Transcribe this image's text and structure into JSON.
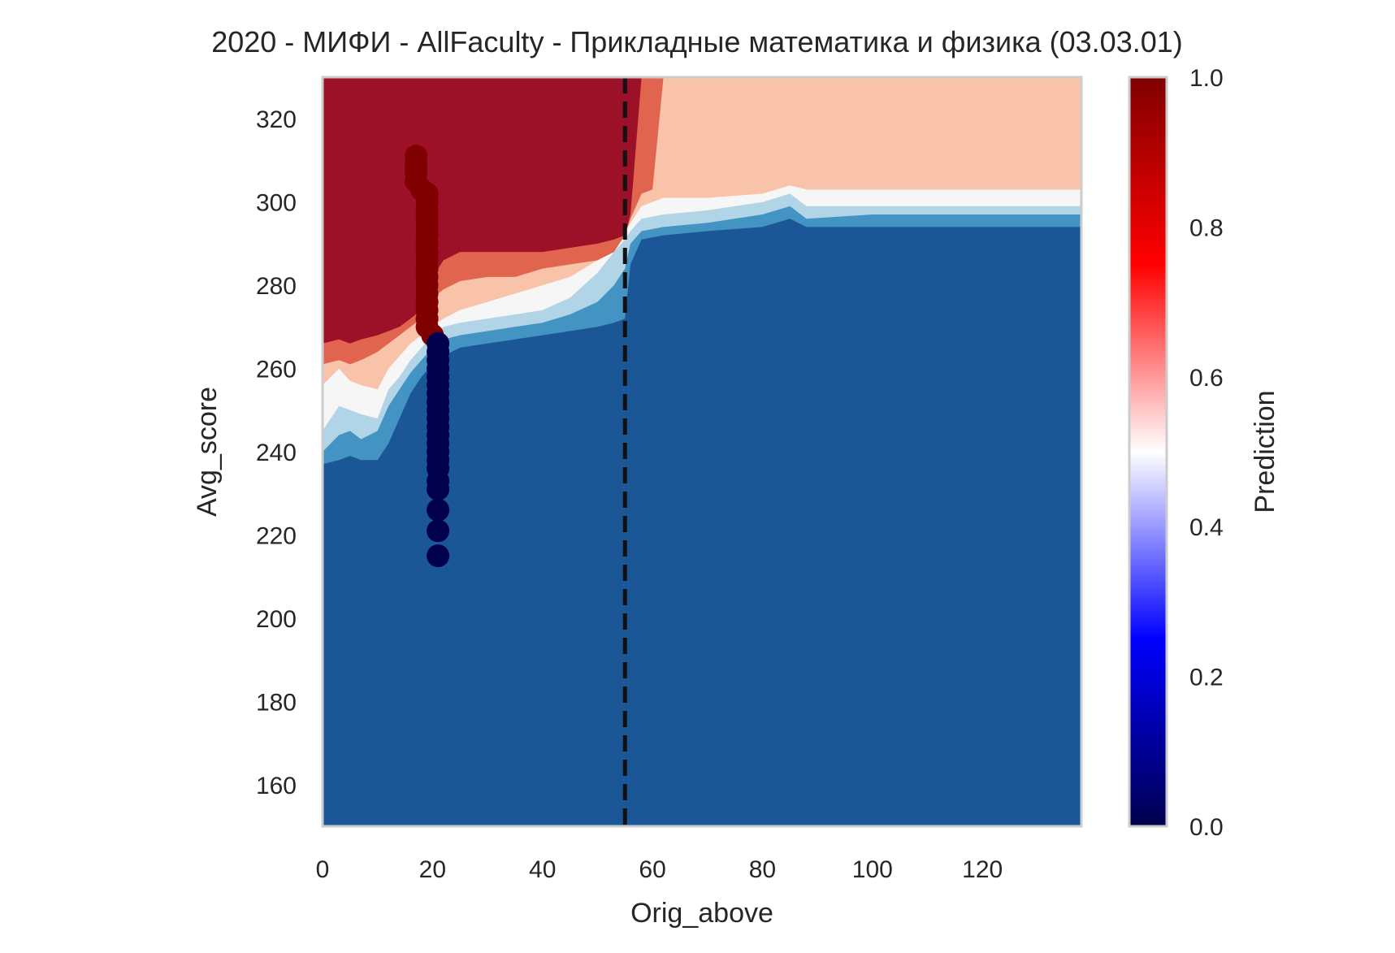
{
  "chart_data": {
    "type": "heatmap",
    "title": "2020 - МИФИ - AllFaculty - Прикладные математика и физика (03.03.01)",
    "xlabel": "Orig_above",
    "ylabel": "Avg_score",
    "xlim": [
      0,
      138
    ],
    "ylim": [
      150,
      330
    ],
    "xticks": [
      0,
      20,
      40,
      60,
      80,
      100,
      120
    ],
    "yticks": [
      160,
      180,
      200,
      220,
      240,
      260,
      280,
      300,
      320
    ],
    "grid": false,
    "colorbar": {
      "label": "Prediction",
      "range": [
        0,
        1
      ],
      "ticks": [
        "0.0",
        "0.2",
        "0.4",
        "0.6",
        "0.8",
        "1.0"
      ],
      "colormap": "seismic",
      "colors": [
        "#00004d",
        "#0000ff",
        "#ffffff",
        "#ff0000",
        "#800000"
      ]
    },
    "contour_levels": [
      {
        "level": "0.0-0.125",
        "color": "#1b5797"
      },
      {
        "level": "0.125-0.25",
        "color": "#4393c3"
      },
      {
        "level": "0.25-0.375",
        "color": "#b1d4e6"
      },
      {
        "level": "0.375-0.625",
        "color": "#f6f6f6"
      },
      {
        "level": "0.625-0.75",
        "color": "#f8c3a9"
      },
      {
        "level": "0.75-0.875",
        "color": "#e0644e"
      },
      {
        "level": "0.875-1.0",
        "color": "#9c1127"
      }
    ],
    "threshold_line": {
      "x": 55,
      "style": "dashed",
      "color": "#111111"
    },
    "series": [
      {
        "color": "#800000",
        "points": [
          [
            17,
            311
          ],
          [
            17,
            309
          ],
          [
            17,
            307
          ],
          [
            17,
            305
          ],
          [
            18,
            303
          ],
          [
            19,
            302
          ],
          [
            19,
            300
          ],
          [
            19,
            298
          ],
          [
            19,
            296
          ],
          [
            19,
            294
          ],
          [
            19,
            292
          ],
          [
            19,
            290
          ],
          [
            19,
            288
          ],
          [
            19,
            286
          ],
          [
            19,
            284
          ],
          [
            19,
            282
          ],
          [
            19,
            280
          ],
          [
            19,
            278
          ],
          [
            19,
            276
          ],
          [
            19,
            274
          ],
          [
            19,
            272
          ],
          [
            19,
            270
          ],
          [
            20,
            268
          ]
        ]
      },
      {
        "color": "#00004d",
        "points": [
          [
            21,
            266
          ],
          [
            21,
            264
          ],
          [
            21,
            262
          ],
          [
            21,
            260
          ],
          [
            21,
            258
          ],
          [
            21,
            256
          ],
          [
            21,
            254
          ],
          [
            21,
            252
          ],
          [
            21,
            250
          ],
          [
            21,
            248
          ],
          [
            21,
            246
          ],
          [
            21,
            244
          ],
          [
            21,
            242
          ],
          [
            21,
            240
          ],
          [
            21,
            238
          ],
          [
            21,
            236
          ],
          [
            21,
            233
          ],
          [
            21,
            231
          ],
          [
            21,
            226
          ],
          [
            21,
            221
          ],
          [
            21,
            215
          ]
        ]
      }
    ]
  }
}
